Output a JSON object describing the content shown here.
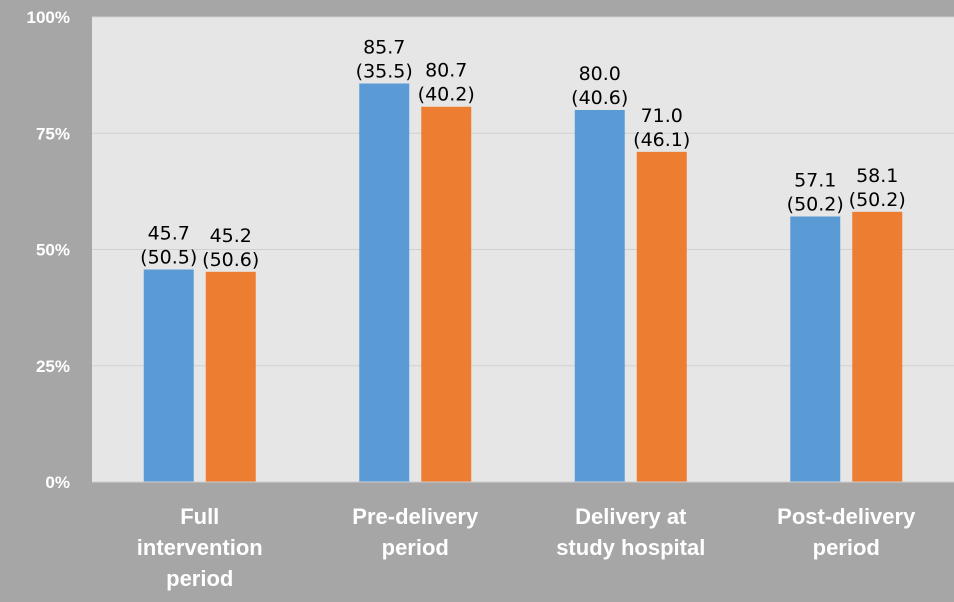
{
  "chart_data": {
    "type": "bar",
    "title": "",
    "xlabel": "",
    "ylabel": "",
    "ylim": [
      0,
      100
    ],
    "yticks": [
      "0%",
      "25%",
      "50%",
      "75%",
      "100%"
    ],
    "ytick_values": [
      0,
      25,
      50,
      75,
      100
    ],
    "grid": true,
    "legend": "none",
    "categories": [
      [
        "Full",
        "intervention",
        "period"
      ],
      [
        "Pre-delivery",
        "period"
      ],
      [
        "Delivery at",
        "study hospital"
      ],
      [
        "Post-delivery",
        "period"
      ]
    ],
    "series": [
      {
        "color": "#5b9bd5",
        "values": [
          45.7,
          85.7,
          80.0,
          57.1
        ],
        "labels": [
          [
            "45.7",
            "(50.5)"
          ],
          [
            "85.7",
            "(35.5)"
          ],
          [
            "80.0",
            "(40.6)"
          ],
          [
            "57.1",
            "(50.2)"
          ]
        ]
      },
      {
        "color": "#ed7d31",
        "values": [
          45.2,
          80.7,
          71.0,
          58.1
        ],
        "labels": [
          [
            "45.2",
            "(50.6)"
          ],
          [
            "80.7",
            "(40.2)"
          ],
          [
            "71.0",
            "(46.1)"
          ],
          [
            "58.1",
            "(50.2)"
          ]
        ]
      }
    ],
    "colors": {
      "background": "#a6a6a6",
      "plot_area": "#e6e6e6",
      "gridline": "#d0d0d0"
    }
  }
}
